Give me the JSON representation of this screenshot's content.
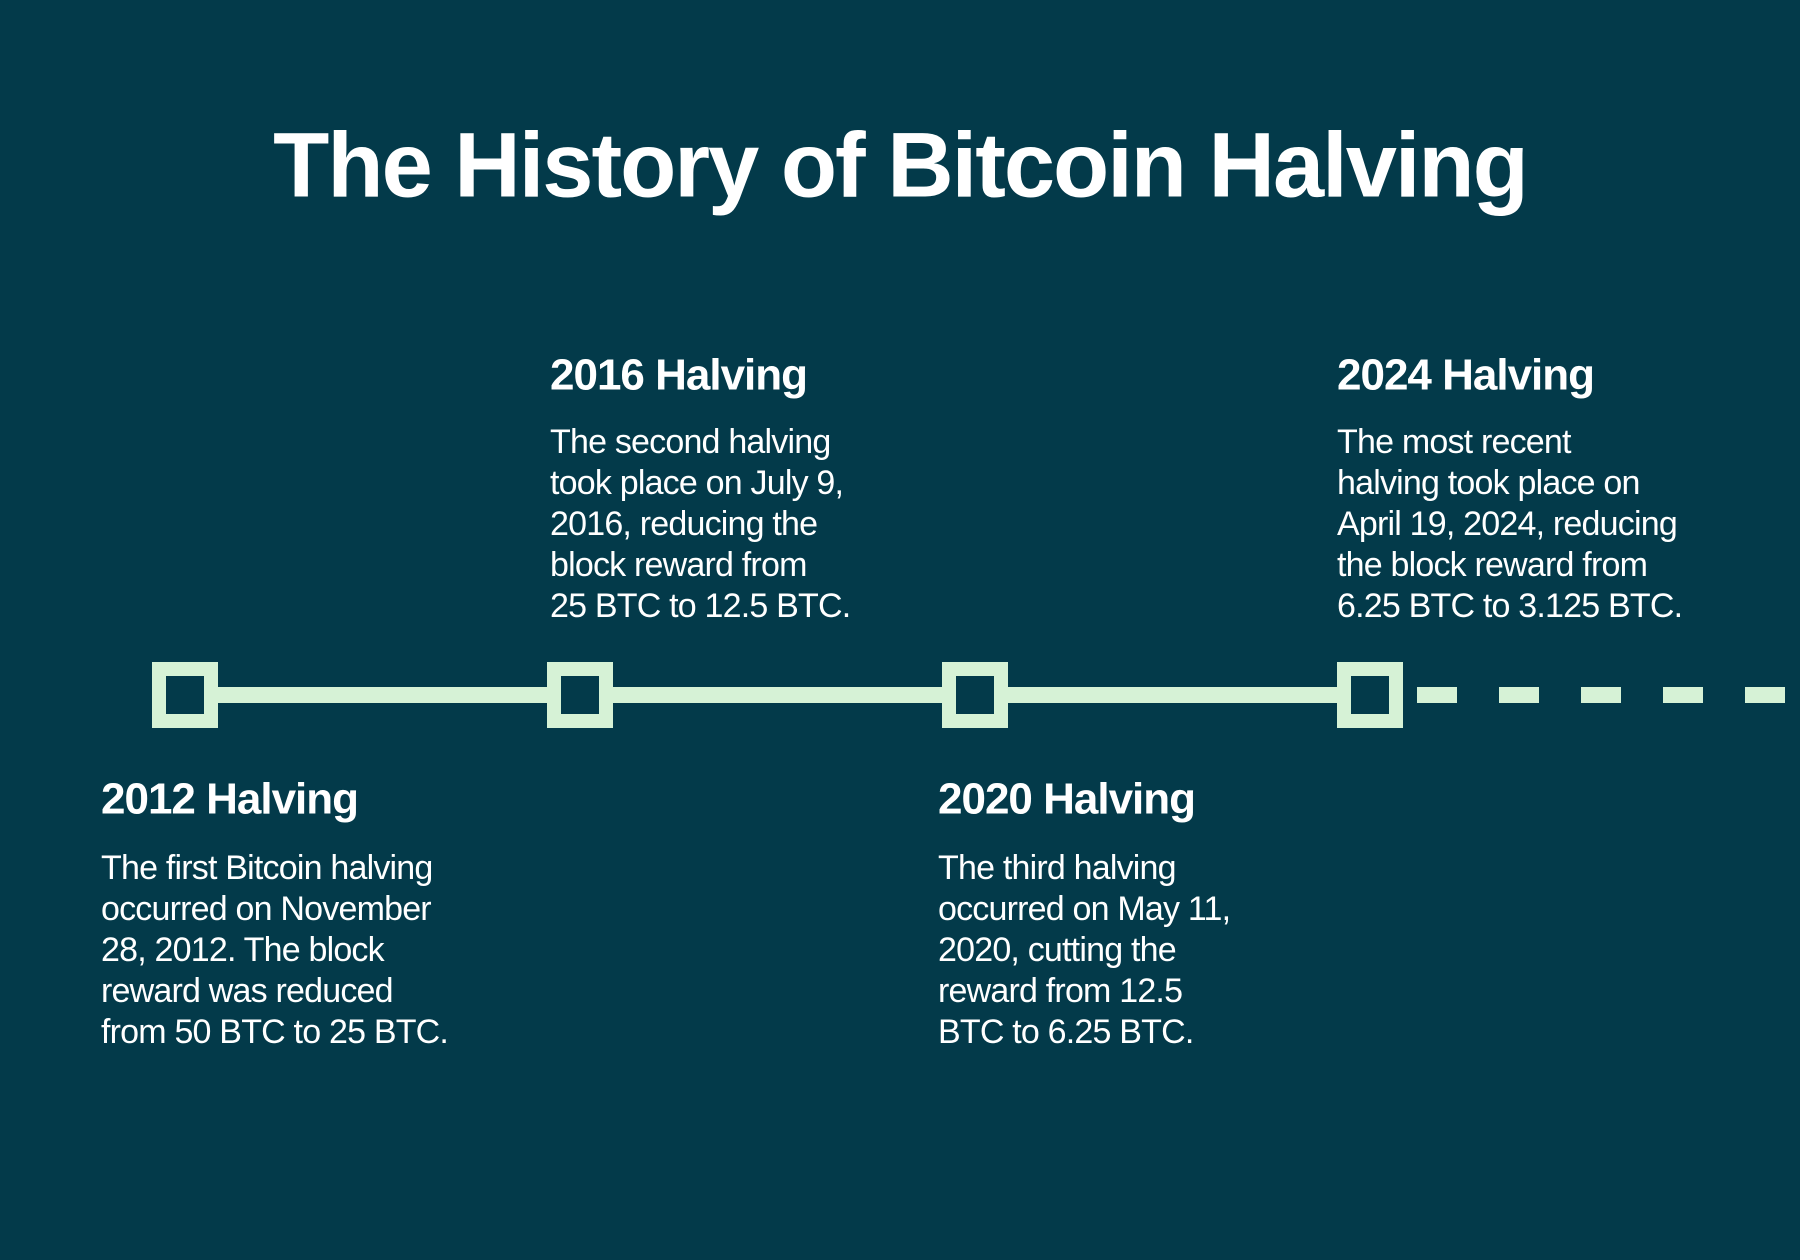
{
  "title": "The History of Bitcoin Halving",
  "events": [
    {
      "heading": "2012 Halving",
      "lines": [
        "The first Bitcoin halving",
        "occurred on November",
        "28, 2012. The block",
        "reward was reduced",
        "from 50 BTC to 25 BTC."
      ]
    },
    {
      "heading": "2016 Halving",
      "lines": [
        "The second halving",
        "took place on July 9,",
        "2016, reducing the",
        "block reward from",
        "25 BTC to 12.5 BTC."
      ]
    },
    {
      "heading": "2020 Halving",
      "lines": [
        "The third halving",
        "occurred on May 11,",
        "2020, cutting the",
        "reward from 12.5",
        "BTC to 6.25 BTC."
      ]
    },
    {
      "heading": "2024 Halving",
      "lines": [
        "The most recent",
        "halving took place on",
        "April 19, 2024, reducing",
        "the block reward from",
        "6.25 BTC to 3.125 BTC."
      ]
    }
  ]
}
